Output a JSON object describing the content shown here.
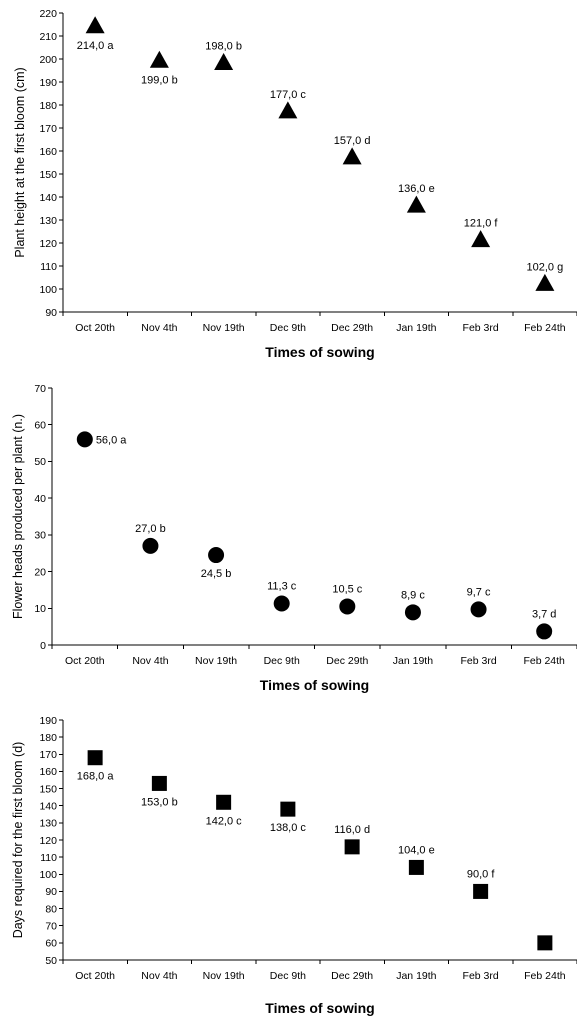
{
  "chart_data": [
    {
      "type": "scatter",
      "marker": "triangle",
      "marker_color": "#000000",
      "categories": [
        "Oct 20th",
        "Nov 4th",
        "Nov 19th",
        "Dec 9th",
        "Dec 29th",
        "Jan 19th",
        "Feb 3rd",
        "Feb 24th"
      ],
      "values": [
        214,
        199,
        198,
        177,
        157,
        136,
        121,
        102
      ],
      "data_labels": [
        "214,0 a",
        "199,0 b",
        "198,0 b",
        "177,0 c",
        "157,0 d",
        "136,0 e",
        "121,0 f",
        "102,0 g"
      ],
      "label_positions": [
        "below",
        "below",
        "above",
        "above",
        "above",
        "above",
        "above",
        "above"
      ],
      "ylim": [
        90,
        220
      ],
      "ystep": 10,
      "yticks": [
        "90",
        "100",
        "110",
        "120",
        "130",
        "140",
        "150",
        "160",
        "170",
        "180",
        "190",
        "200",
        "210",
        "220"
      ],
      "xlabel": "Times of sowing",
      "ylabel": "Plant height at the first bloom (cm)",
      "grid": false
    },
    {
      "type": "scatter",
      "marker": "circle",
      "marker_color": "#000000",
      "categories": [
        "Oct 20th",
        "Nov 4th",
        "Nov 19th",
        "Dec 9th",
        "Dec 29th",
        "Jan 19th",
        "Feb 3rd",
        "Feb 24th"
      ],
      "values": [
        56.0,
        27.0,
        24.5,
        11.3,
        10.5,
        8.9,
        9.7,
        3.7
      ],
      "data_labels": [
        "56,0 a",
        "27,0 b",
        "24,5 b",
        "11,3 c",
        "10,5 c",
        "8,9 c",
        "9,7 c",
        "3,7 d"
      ],
      "label_positions": [
        "right",
        "above",
        "below",
        "above",
        "above",
        "above",
        "above",
        "above"
      ],
      "ylim": [
        0,
        70
      ],
      "ystep": 10,
      "yticks": [
        "0",
        "10",
        "20",
        "30",
        "40",
        "50",
        "60",
        "70"
      ],
      "xlabel": "Times of sowing",
      "ylabel": "Flower heads produced per plant (n.)",
      "grid": false
    },
    {
      "type": "scatter",
      "marker": "square",
      "marker_color": "#000000",
      "categories": [
        "Oct 20th",
        "Nov 4th",
        "Nov 19th",
        "Dec 9th",
        "Dec 29th",
        "Jan 19th",
        "Feb 3rd",
        "Feb 24th"
      ],
      "values": [
        168,
        153,
        142,
        138,
        116,
        104,
        90,
        60
      ],
      "data_labels": [
        "168,0 a",
        "153,0 b",
        "142,0 c",
        "138,0 c",
        "116,0 d",
        "104,0 e",
        "90,0 f",
        ""
      ],
      "label_positions": [
        "below",
        "below",
        "below",
        "below",
        "above",
        "above",
        "above",
        "none"
      ],
      "ylim": [
        50,
        190
      ],
      "ystep": 10,
      "yticks": [
        "50",
        "60",
        "70",
        "80",
        "90",
        "100",
        "110",
        "120",
        "130",
        "140",
        "150",
        "160",
        "170",
        "180",
        "190"
      ],
      "xlabel": "Times of sowing",
      "ylabel": "Days required for the first bloom (d)",
      "grid": false
    }
  ]
}
